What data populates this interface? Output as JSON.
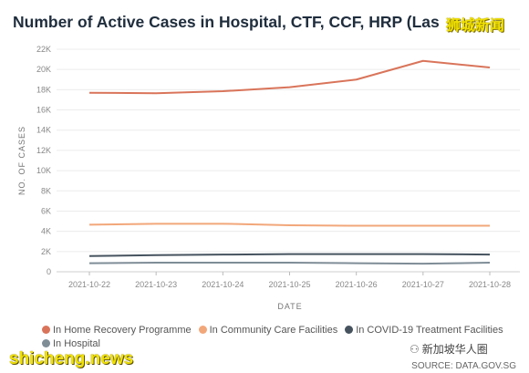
{
  "title": "Number of Active Cases in Hospital, CTF, CCF, HRP (Las",
  "watermark_top": "狮城新闻",
  "watermark_bottom": "shicheng.news",
  "watermark_right": "新加坡华人圈",
  "source": "SOURCE: DATA.GOV.SG",
  "chart_data": {
    "type": "line",
    "xlabel": "DATE",
    "ylabel": "NO. OF CASES",
    "ylim": [
      0,
      22000
    ],
    "yticks": [
      0,
      2000,
      4000,
      6000,
      8000,
      10000,
      12000,
      14000,
      16000,
      18000,
      20000,
      22000
    ],
    "ytick_labels": [
      "0",
      "2K",
      "4K",
      "6K",
      "8K",
      "10K",
      "12K",
      "14K",
      "16K",
      "18K",
      "20K",
      "22K"
    ],
    "categories": [
      "2021-10-22",
      "2021-10-23",
      "2021-10-24",
      "2021-10-25",
      "2021-10-26",
      "2021-10-27",
      "2021-10-28"
    ],
    "grid": true,
    "legend_position": "bottom",
    "series": [
      {
        "name": "In Home Recovery Programme",
        "color": "#d9745a",
        "values": [
          17700,
          17650,
          17850,
          18250,
          19000,
          20850,
          20200
        ]
      },
      {
        "name": "In Community Care Facilities",
        "color": "#f2a77a",
        "values": [
          4650,
          4750,
          4750,
          4600,
          4550,
          4550,
          4550
        ]
      },
      {
        "name": "In COVID-19 Treatment Facilities",
        "color": "#46535f",
        "values": [
          1550,
          1650,
          1700,
          1750,
          1750,
          1750,
          1700
        ]
      },
      {
        "name": "In Hospital",
        "color": "#7f8d97",
        "values": [
          850,
          900,
          900,
          900,
          850,
          800,
          900
        ]
      }
    ]
  }
}
